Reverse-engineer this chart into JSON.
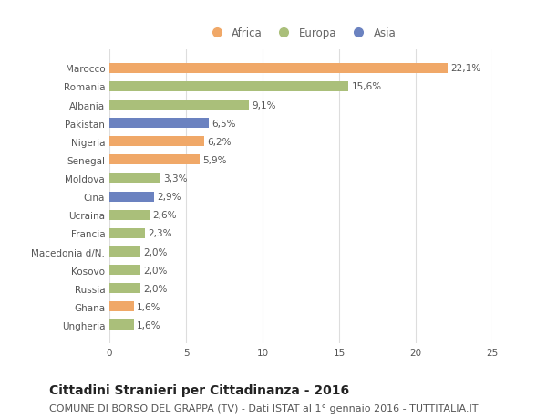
{
  "categories": [
    "Ungheria",
    "Ghana",
    "Russia",
    "Kosovo",
    "Macedonia d/N.",
    "Francia",
    "Ucraina",
    "Cina",
    "Moldova",
    "Senegal",
    "Nigeria",
    "Pakistan",
    "Albania",
    "Romania",
    "Marocco"
  ],
  "values": [
    1.6,
    1.6,
    2.0,
    2.0,
    2.0,
    2.3,
    2.6,
    2.9,
    3.3,
    5.9,
    6.2,
    6.5,
    9.1,
    15.6,
    22.1
  ],
  "labels": [
    "1,6%",
    "1,6%",
    "2,0%",
    "2,0%",
    "2,0%",
    "2,3%",
    "2,6%",
    "2,9%",
    "3,3%",
    "5,9%",
    "6,2%",
    "6,5%",
    "9,1%",
    "15,6%",
    "22,1%"
  ],
  "continents": [
    "Europa",
    "Africa",
    "Europa",
    "Europa",
    "Europa",
    "Europa",
    "Europa",
    "Asia",
    "Europa",
    "Africa",
    "Africa",
    "Asia",
    "Europa",
    "Europa",
    "Africa"
  ],
  "colors": {
    "Africa": "#F0A868",
    "Europa": "#AABF7A",
    "Asia": "#6B82C0"
  },
  "legend_order": [
    "Africa",
    "Europa",
    "Asia"
  ],
  "xlim": [
    0,
    25
  ],
  "xticks": [
    0,
    5,
    10,
    15,
    20,
    25
  ],
  "title": "Cittadini Stranieri per Cittadinanza - 2016",
  "subtitle": "COMUNE DI BORSO DEL GRAPPA (TV) - Dati ISTAT al 1° gennaio 2016 - TUTTITALIA.IT",
  "bg_color": "#ffffff",
  "grid_color": "#dddddd",
  "bar_height": 0.55,
  "title_fontsize": 10,
  "subtitle_fontsize": 8,
  "label_fontsize": 7.5,
  "tick_fontsize": 7.5,
  "legend_fontsize": 8.5
}
